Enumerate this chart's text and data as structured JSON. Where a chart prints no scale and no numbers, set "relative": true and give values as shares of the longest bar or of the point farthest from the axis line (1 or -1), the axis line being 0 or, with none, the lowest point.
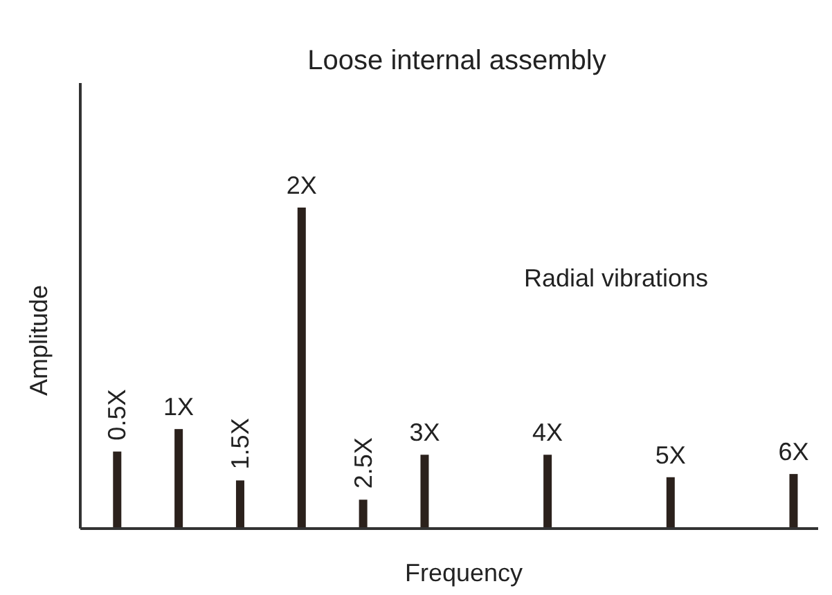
{
  "chart_data": {
    "type": "bar",
    "title": "Loose internal assembly",
    "xlabel": "Frequency",
    "ylabel": "Amplitude",
    "annotations": [
      "Radial vibrations"
    ],
    "relative": true,
    "categories": [
      "0.5X",
      "1X",
      "1.5X",
      "2X",
      "2.5X",
      "3X",
      null,
      "4X",
      null,
      "5X",
      null,
      "6X"
    ],
    "series": [
      {
        "color": "#2b211c",
        "values": [
          0.24,
          0.31,
          0.15,
          1,
          0.09,
          0.23,
          null,
          0.23,
          null,
          0.16,
          null,
          0.17
        ]
      }
    ]
  }
}
